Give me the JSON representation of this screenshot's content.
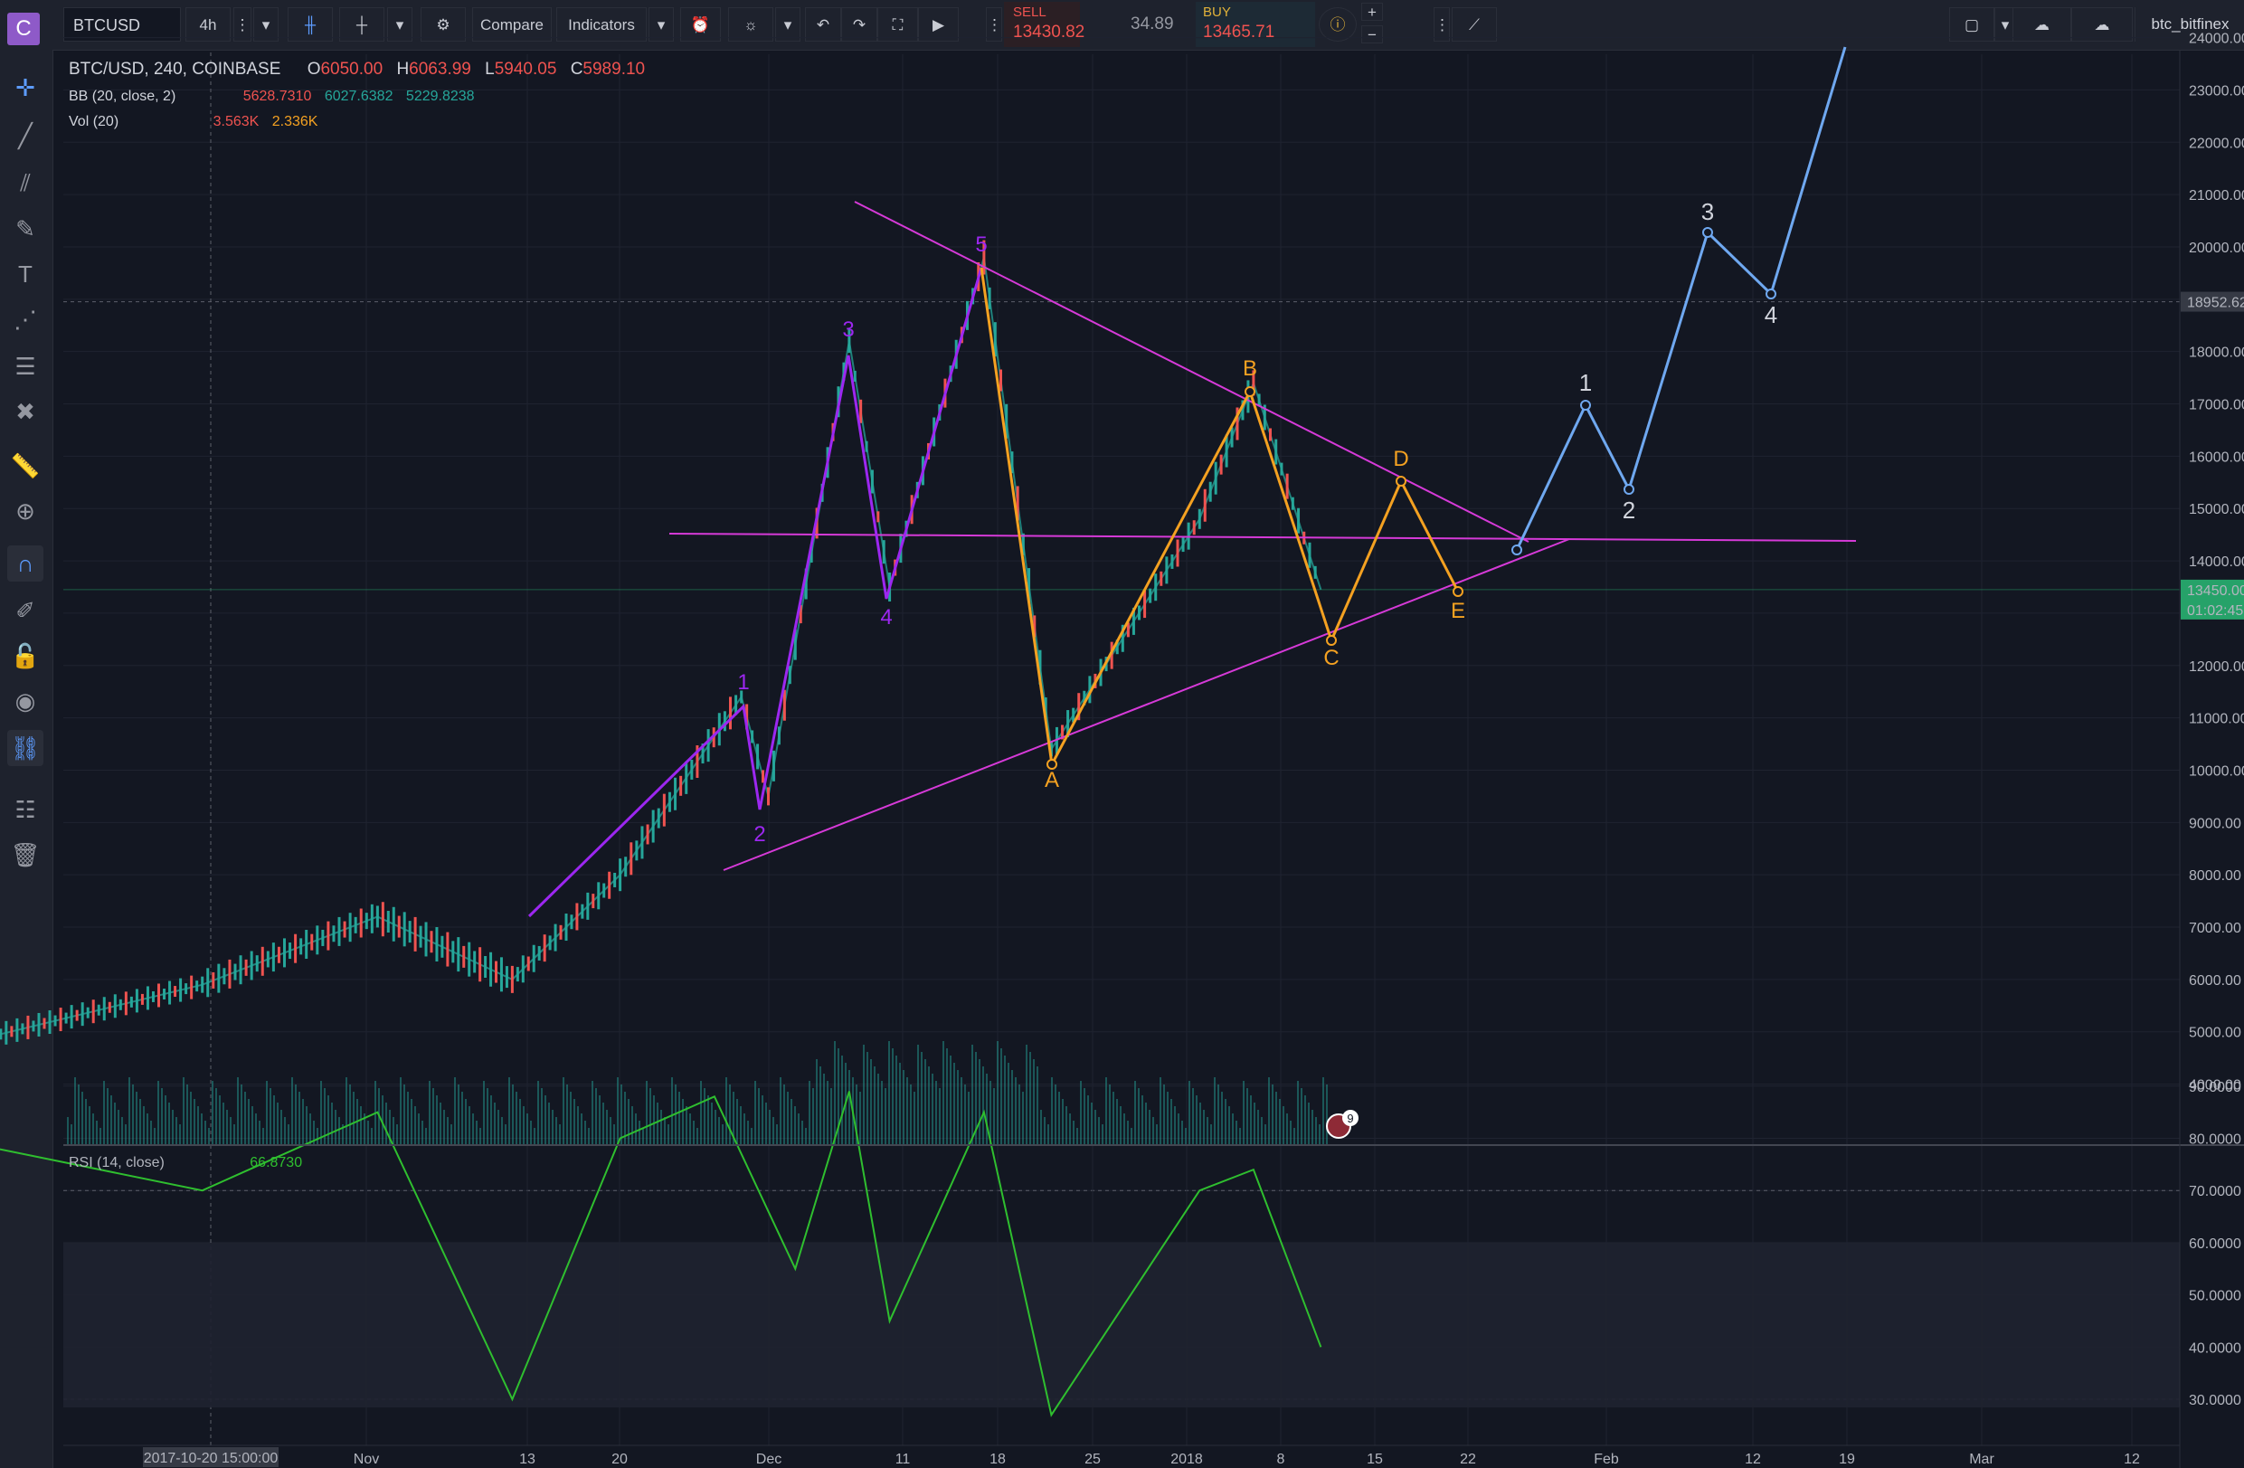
{
  "toolbar": {
    "symbol": "BTCUSD",
    "interval": "4h",
    "compare_label": "Compare",
    "indicators_label": "Indicators",
    "sell_label": "SELL",
    "sell_price": "13430.82",
    "spread": "34.89",
    "buy_label": "BUY",
    "buy_price": "13465.71",
    "username": "btc_bitfinex"
  },
  "logo_letter": "C",
  "legend": {
    "title": "BTC/USD, 240, COINBASE",
    "open_label": "O",
    "open": "6050.00",
    "high_label": "H",
    "high": "6063.99",
    "low_label": "L",
    "low": "5940.05",
    "close_label": "C",
    "close": "5989.10",
    "bb_label": "BB (20, close, 2)",
    "bb_values": [
      "5628.7310",
      "6027.6382",
      "5229.8238"
    ],
    "vol_label": "Vol (20)",
    "vol_values": [
      "3.563K",
      "2.336K"
    ],
    "rsi_label": "RSI (14, close)",
    "rsi_value": "66.8730"
  },
  "price_axis": {
    "ticks": [
      "24000.00",
      "23000.00",
      "22000.00",
      "21000.00",
      "20000.00",
      "19000.00",
      "18000.00",
      "17000.00",
      "16000.00",
      "15000.00",
      "14000.00",
      "13000.00",
      "12000.00",
      "11000.00",
      "10000.00",
      "9000.00",
      "8000.00",
      "7000.00",
      "6000.00",
      "5000.00",
      "4000.00"
    ],
    "crosshair_price": "18952.62",
    "last_price": "13450.00",
    "countdown": "01:02:45"
  },
  "rsi_axis": {
    "ticks": [
      "90.0000",
      "80.0000",
      "70.0000",
      "60.0000",
      "50.0000",
      "40.0000",
      "30.0000"
    ]
  },
  "time_axis": {
    "crosshair_time": "2017-10-20 15:00:00",
    "labels": [
      "Nov",
      "13",
      "20",
      "Dec",
      "11",
      "18",
      "25",
      "2018",
      "8",
      "15",
      "22",
      "Feb",
      "12",
      "19",
      "Mar",
      "12"
    ]
  },
  "wave_labels": {
    "impulse": [
      "1",
      "2",
      "3",
      "4",
      "5"
    ],
    "correction": [
      "A",
      "B",
      "C",
      "D",
      "E"
    ],
    "projection": [
      "1",
      "2",
      "3",
      "4"
    ]
  },
  "news_badge_count": "9",
  "colors": {
    "impulse": "#9c27f0",
    "correction": "#f4a121",
    "projection": "#6fa8f0",
    "trendline": "#d63ad8",
    "rsi": "#2fbf2f",
    "bull": "#26a69a",
    "bear": "#ef5350",
    "last_price": "#26a269"
  },
  "chart_data": [
    {
      "type": "line",
      "title": "BTC/USD, 240, COINBASE",
      "series": [
        {
          "name": "BTC/USD",
          "x": [
            "2017-10-01",
            "2017-10-20",
            "2017-11-02",
            "2017-11-12",
            "2017-11-20",
            "2017-11-29",
            "2017-12-01",
            "2017-12-07",
            "2017-12-10",
            "2017-12-17",
            "2017-12-22",
            "2018-01-02",
            "2018-01-06",
            "2018-01-11"
          ],
          "values": [
            4700,
            5900,
            7200,
            6000,
            8000,
            11400,
            9500,
            18200,
            13500,
            19800,
            10400,
            14800,
            17400,
            13450
          ]
        }
      ],
      "ylim": [
        3500,
        24000
      ],
      "grid": true
    },
    {
      "type": "line",
      "title": "RSI (14, close)",
      "series": [
        {
          "name": "RSI (14, close)",
          "x": [
            "2017-10-01",
            "2017-10-20",
            "2017-11-02",
            "2017-11-12",
            "2017-11-20",
            "2017-11-27",
            "2017-12-03",
            "2017-12-07",
            "2017-12-10",
            "2017-12-17",
            "2017-12-22",
            "2018-01-02",
            "2018-01-06",
            "2018-01-11"
          ],
          "values": [
            80,
            70,
            85,
            30,
            80,
            88,
            55,
            89,
            45,
            85,
            27,
            70,
            74,
            40
          ]
        }
      ],
      "ylim": [
        25,
        95
      ]
    }
  ]
}
